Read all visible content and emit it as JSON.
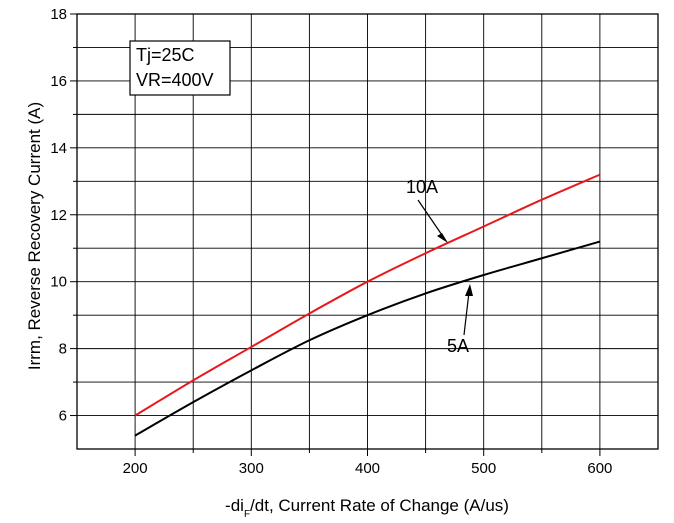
{
  "chart_data": {
    "type": "line",
    "xlabel_main": "-di",
    "xlabel_sub": "F",
    "xlabel_rest": "/dt, Current Rate of Change (A/us)",
    "ylabel": "Irrm, Reverse Recovery Current (A)",
    "xlim": [
      150,
      650
    ],
    "ylim": [
      5,
      18
    ],
    "x_ticks": [
      200,
      300,
      400,
      500,
      600
    ],
    "y_ticks": [
      6,
      8,
      10,
      12,
      14,
      16,
      18
    ],
    "grid": true,
    "conditions": [
      "Tj=25C",
      "VR=400V"
    ],
    "series": [
      {
        "name": "10A",
        "color": "#e8191c",
        "x": [
          200,
          250,
          300,
          350,
          400,
          450,
          500,
          550,
          600
        ],
        "y": [
          6.0,
          7.05,
          8.05,
          9.05,
          10.0,
          10.85,
          11.65,
          12.45,
          13.2
        ]
      },
      {
        "name": "5A",
        "color": "#000000",
        "x": [
          200,
          250,
          300,
          350,
          400,
          450,
          500,
          550,
          600
        ],
        "y": [
          5.4,
          6.4,
          7.35,
          8.25,
          9.0,
          9.65,
          10.2,
          10.7,
          11.2
        ]
      }
    ],
    "annotations": [
      {
        "text": "10A",
        "series": "10A",
        "point_x": 450
      },
      {
        "text": "5A",
        "series": "5A",
        "point_x": 480
      }
    ]
  }
}
